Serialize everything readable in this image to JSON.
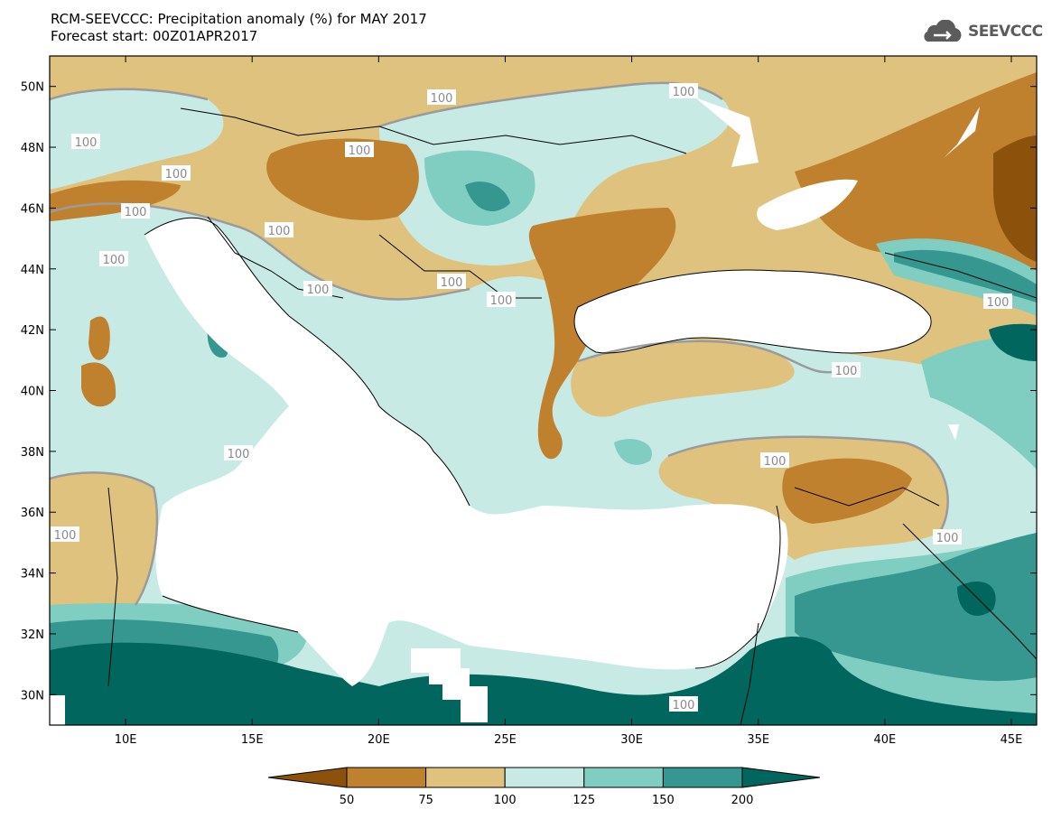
{
  "title": {
    "line1": "RCM-SEEVCCC: Precipitation anomaly (%) for MAY 2017",
    "line2": "Forecast start: 00Z01APR2017"
  },
  "logo": {
    "text": "SEEVCCC",
    "icon": "cloud-icon"
  },
  "axes": {
    "x_ticks": [
      "10E",
      "15E",
      "20E",
      "25E",
      "30E",
      "35E",
      "40E",
      "45E"
    ],
    "y_ticks": [
      "50N",
      "48N",
      "46N",
      "44N",
      "42N",
      "40N",
      "38N",
      "36N",
      "34N",
      "32N",
      "30N"
    ],
    "lon_range": [
      7,
      46
    ],
    "lat_range": [
      29,
      51
    ]
  },
  "contour_label": "100",
  "colorbar": {
    "labels": [
      "50",
      "75",
      "100",
      "125",
      "150",
      "200"
    ],
    "colors": {
      "below_50": "#8c510a",
      "50_75": "#bf812d",
      "75_100": "#dfc27d",
      "100_125": "#c7eae5",
      "125_150": "#80cdc1",
      "150_200": "#35978f",
      "above_200": "#01665e"
    }
  }
}
